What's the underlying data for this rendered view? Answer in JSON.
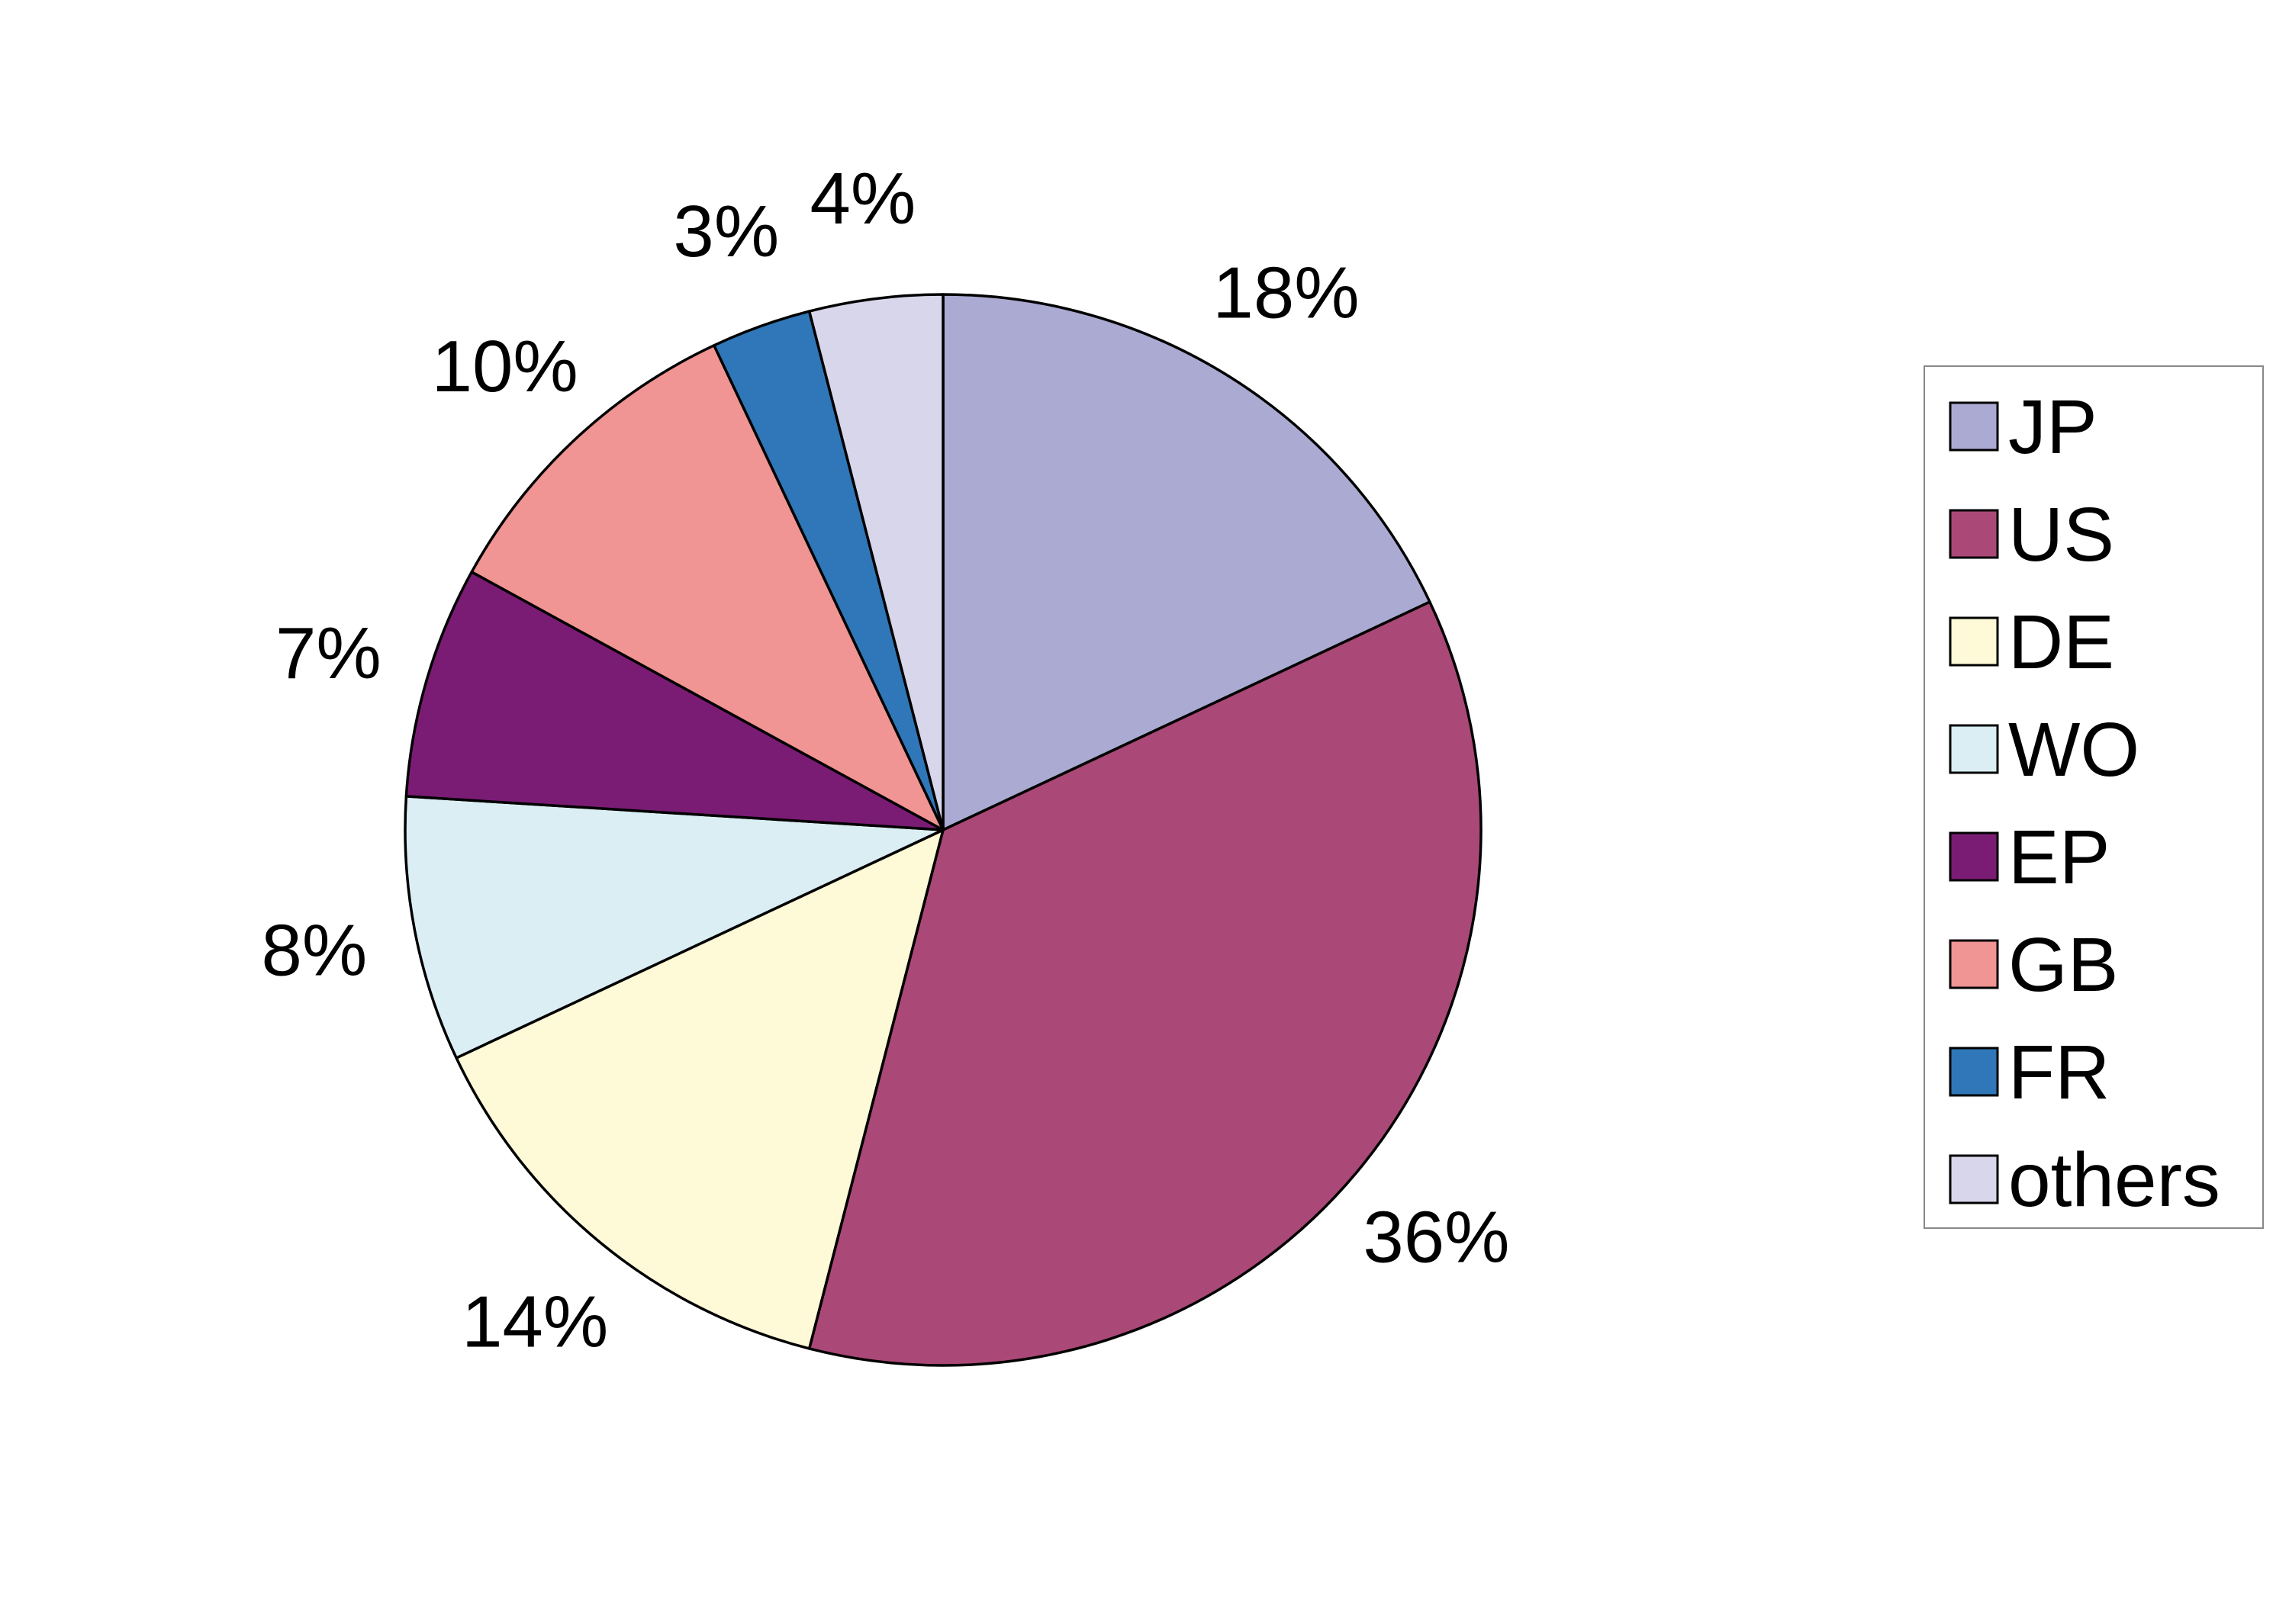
{
  "chart_data": {
    "type": "pie",
    "title": "",
    "start_angle_deg": 0,
    "direction": "clockwise",
    "legend_position": "right",
    "slices": [
      {
        "name": "JP",
        "value": 18,
        "label": "18%",
        "color": "#aaaad2"
      },
      {
        "name": "US",
        "value": 36,
        "label": "36%",
        "color": "#aa4877"
      },
      {
        "name": "DE",
        "value": 14,
        "label": "14%",
        "color": "#fefad8"
      },
      {
        "name": "WO",
        "value": 8,
        "label": "8%",
        "color": "#daeef4"
      },
      {
        "name": "EP",
        "value": 7,
        "label": "7%",
        "color": "#7a1c74"
      },
      {
        "name": "GB",
        "value": 10,
        "label": "10%",
        "color": "#f09494"
      },
      {
        "name": "FR",
        "value": 3,
        "label": "3%",
        "color": "#2f77b8"
      },
      {
        "name": "others",
        "value": 4,
        "label": "4%",
        "color": "#d8d6ea"
      }
    ]
  }
}
